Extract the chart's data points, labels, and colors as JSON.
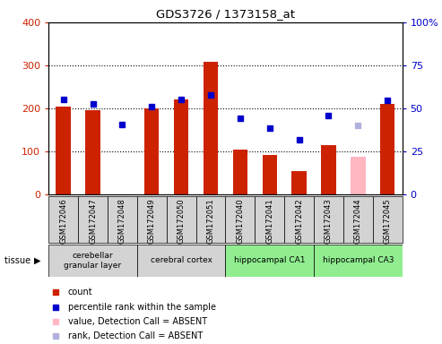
{
  "title": "GDS3726 / 1373158_at",
  "samples": [
    "GSM172046",
    "GSM172047",
    "GSM172048",
    "GSM172049",
    "GSM172050",
    "GSM172051",
    "GSM172040",
    "GSM172041",
    "GSM172042",
    "GSM172043",
    "GSM172044",
    "GSM172045"
  ],
  "count_values": [
    205,
    195,
    null,
    200,
    220,
    308,
    105,
    92,
    55,
    115,
    null,
    210
  ],
  "rank_values": [
    220,
    210,
    162,
    205,
    220,
    232,
    178,
    155,
    128,
    183,
    null,
    218
  ],
  "count_absent": [
    null,
    null,
    null,
    null,
    null,
    null,
    null,
    null,
    null,
    null,
    88,
    null
  ],
  "rank_absent": [
    null,
    null,
    null,
    null,
    null,
    null,
    null,
    null,
    null,
    null,
    160,
    null
  ],
  "tissue_groups": [
    {
      "label": "cerebellar\ngranular layer",
      "start": 0,
      "end": 3,
      "color": "#d3d3d3"
    },
    {
      "label": "cerebral cortex",
      "start": 3,
      "end": 6,
      "color": "#d3d3d3"
    },
    {
      "label": "hippocampal CA1",
      "start": 6,
      "end": 9,
      "color": "#90ee90"
    },
    {
      "label": "hippocampal CA3",
      "start": 9,
      "end": 12,
      "color": "#90ee90"
    }
  ],
  "bar_color": "#cc2200",
  "rank_color": "#0000cc",
  "absent_bar_color": "#ffb6c1",
  "absent_rank_color": "#b0b0dd",
  "ylim_left": [
    0,
    400
  ],
  "ylim_right": [
    0,
    100
  ],
  "yticks_left": [
    0,
    100,
    200,
    300,
    400
  ],
  "yticks_right": [
    0,
    25,
    50,
    75,
    100
  ],
  "ytick_right_labels": [
    "0",
    "25",
    "50",
    "75",
    "100%"
  ],
  "grid_lines": [
    100,
    200,
    300
  ]
}
